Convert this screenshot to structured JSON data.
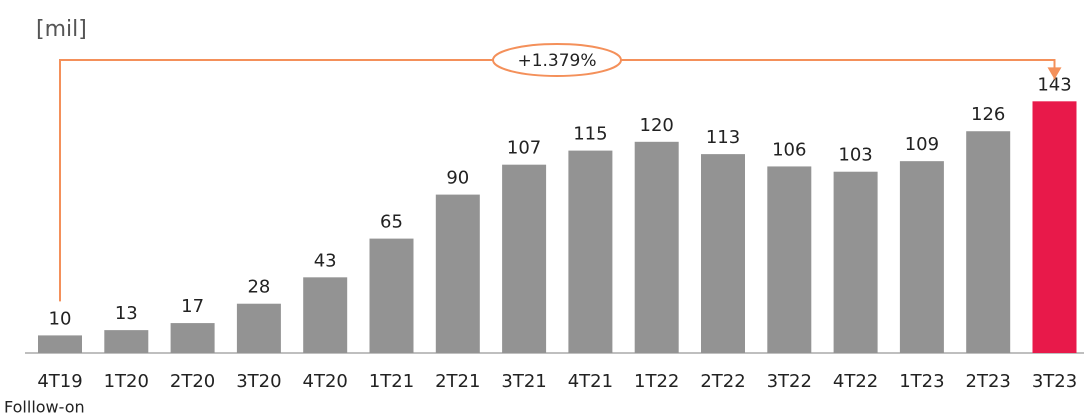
{
  "chart_data": {
    "type": "bar",
    "unit_label": "[mil]",
    "footnote": "Folllow-on",
    "annotation": "+1.379%",
    "annotation_color": "#f4905a",
    "categories": [
      "4T19",
      "1T20",
      "2T20",
      "3T20",
      "4T20",
      "1T21",
      "2T21",
      "3T21",
      "4T21",
      "1T22",
      "2T22",
      "3T22",
      "4T22",
      "1T23",
      "2T23",
      "3T23"
    ],
    "values": [
      10,
      13,
      17,
      28,
      43,
      65,
      90,
      107,
      115,
      120,
      113,
      106,
      103,
      109,
      126,
      143
    ],
    "colors": [
      "#939393",
      "#939393",
      "#939393",
      "#939393",
      "#939393",
      "#939393",
      "#939393",
      "#939393",
      "#939393",
      "#939393",
      "#939393",
      "#939393",
      "#939393",
      "#939393",
      "#939393",
      "#e8194a"
    ],
    "ylim": [
      0,
      150
    ]
  }
}
